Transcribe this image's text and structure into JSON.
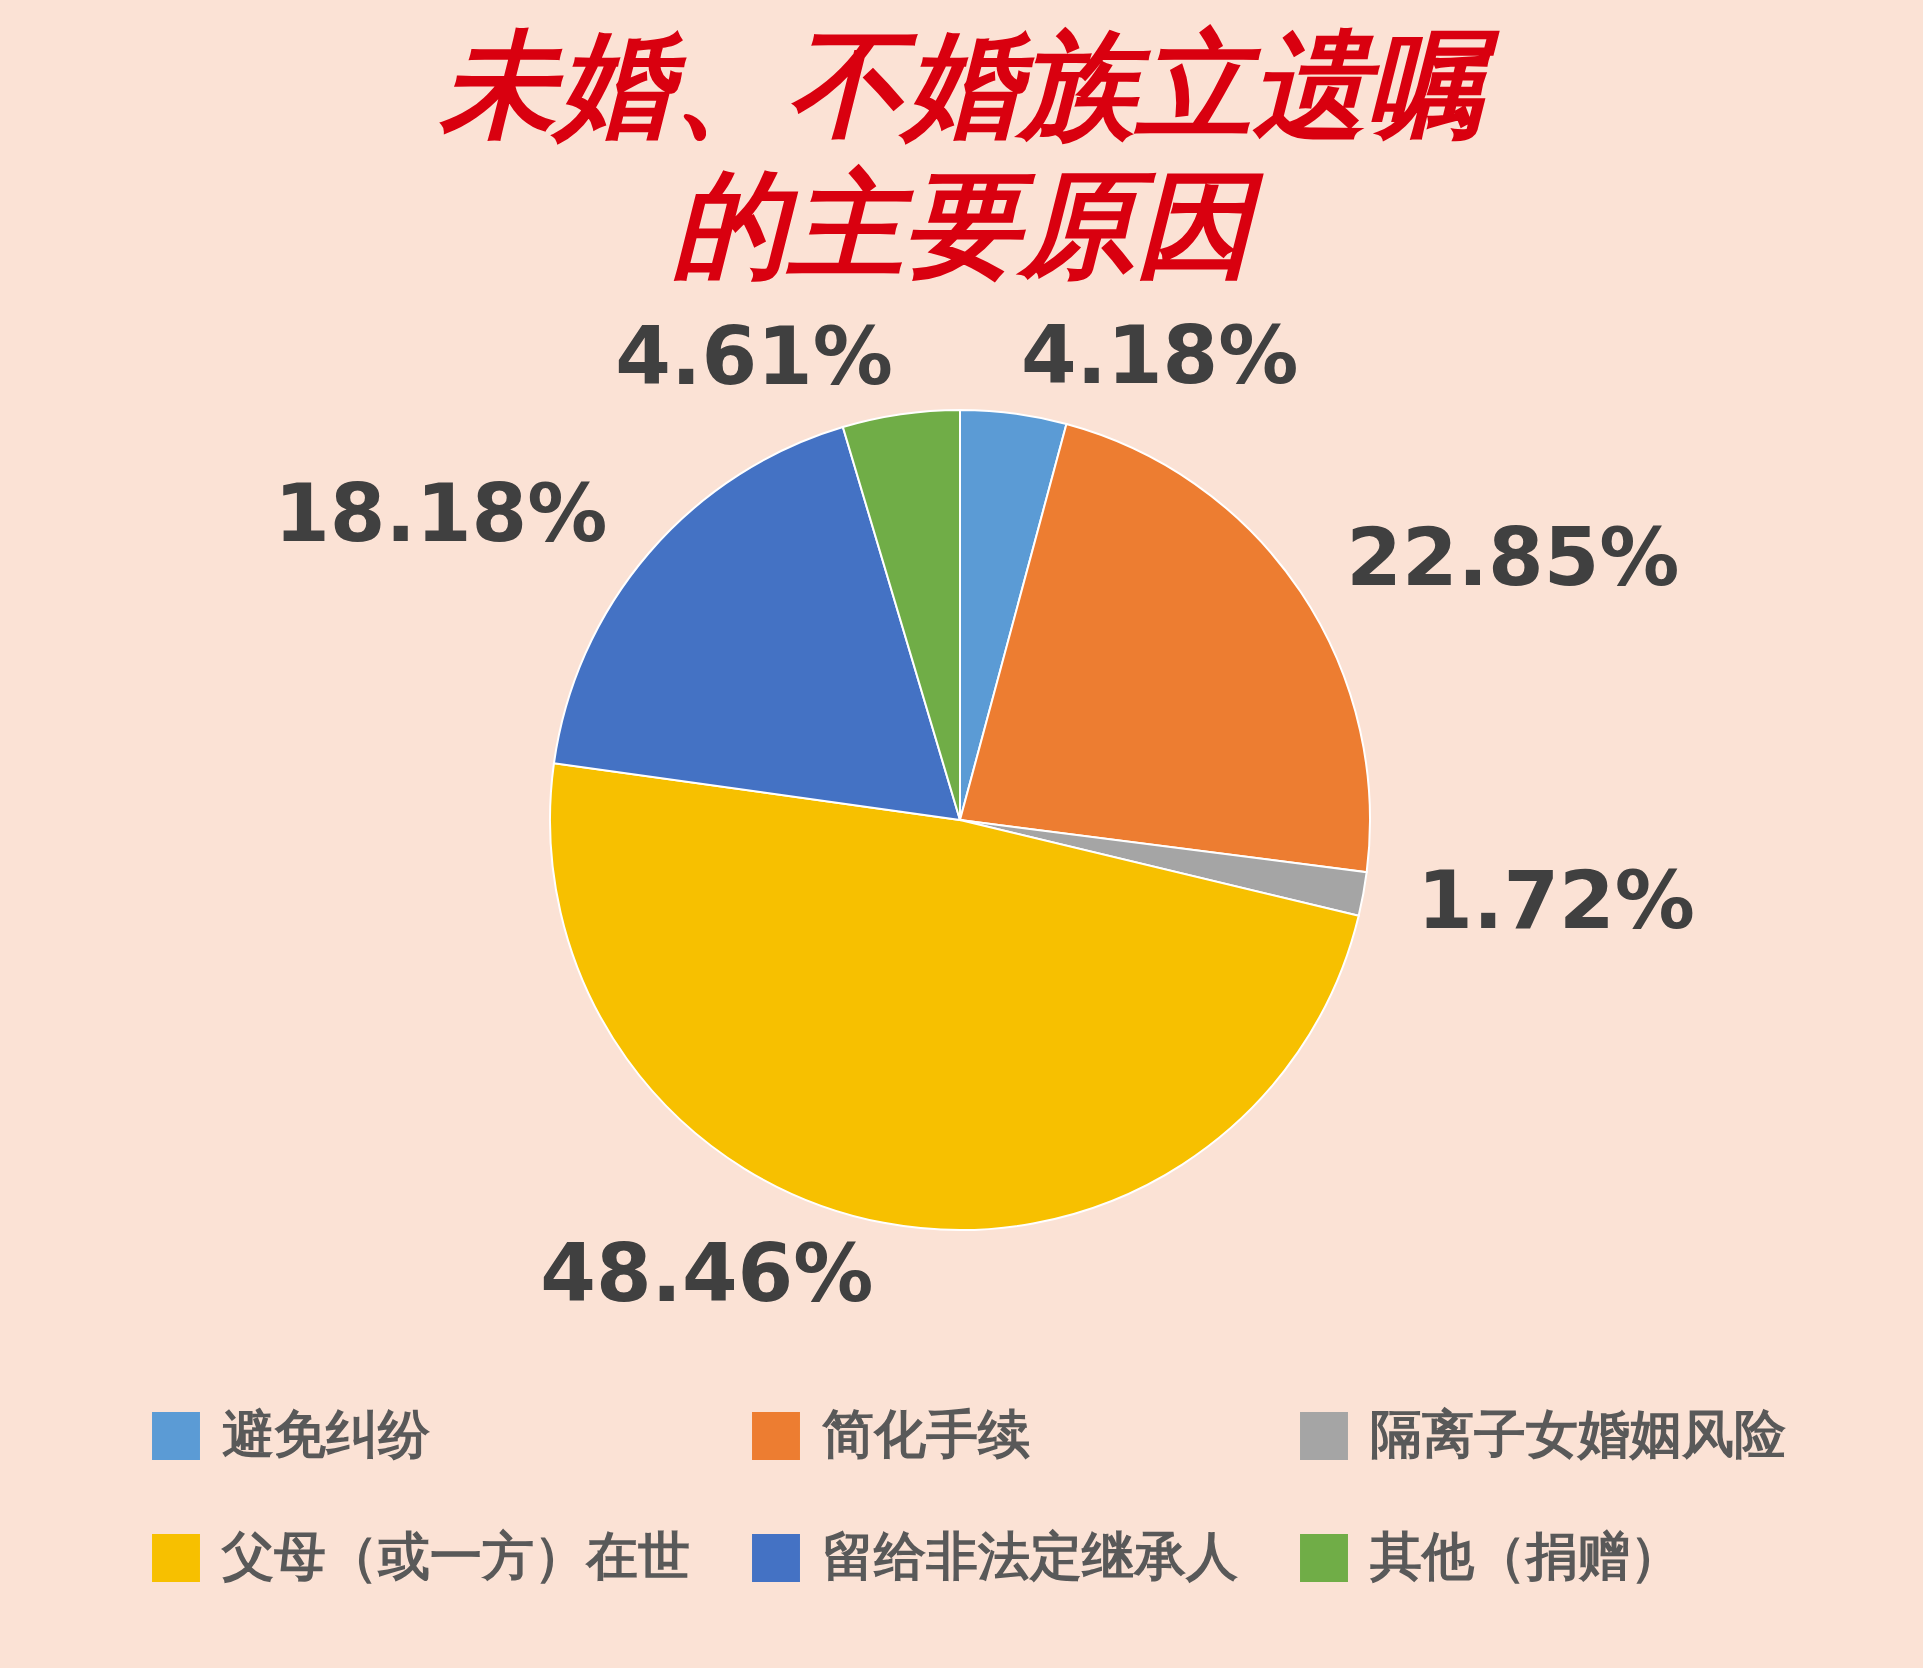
{
  "chart_data": {
    "type": "pie",
    "title": "未婚、不婚族立遗嘱的主要原因",
    "categories": [
      "避免纠纷",
      "简化手续",
      "隔离子女婚姻风险",
      "父母（或一方）在世",
      "留给非法定继承人",
      "其他（捐赠）"
    ],
    "values": [
      4.18,
      22.85,
      1.72,
      48.46,
      18.18,
      4.61
    ],
    "colors": [
      "#5b9bd5",
      "#ed7d31",
      "#a5a5a5",
      "#f7c000",
      "#4472c4",
      "#70ad47"
    ],
    "value_labels": [
      "4.18%",
      "22.85%",
      "1.72%",
      "48.46%",
      "18.18%",
      "4.61%"
    ],
    "legend": "bottom"
  }
}
